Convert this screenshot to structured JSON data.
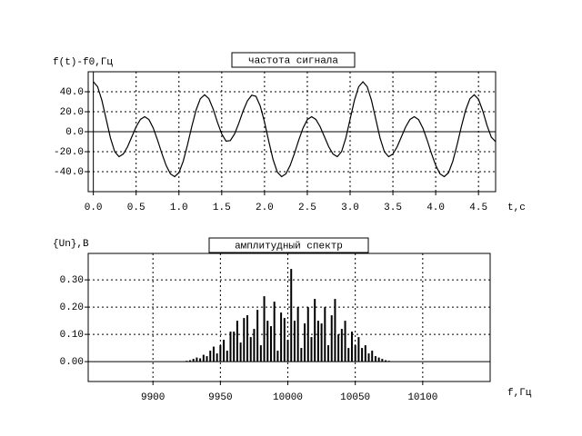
{
  "chart_data": [
    {
      "type": "line",
      "title": "частота сигнала",
      "y_label": "f(t)-f0,Гц",
      "x_label": "t,c",
      "color": "#000000",
      "grid": true,
      "xlim": [
        -0.06,
        4.7
      ],
      "ylim": [
        -60,
        60
      ],
      "xticks": [
        {
          "value": 0,
          "label": "0.0"
        },
        0.5,
        {
          "value": 1,
          "label": "1.0"
        },
        1.5,
        {
          "value": 2,
          "label": "2.0"
        },
        2.5,
        {
          "value": 3,
          "label": "3.0"
        },
        3.5,
        {
          "value": 4,
          "label": "4.0"
        },
        4.5
      ],
      "yticks": [
        {
          "value": -40,
          "label": "-40.0"
        },
        {
          "value": -20,
          "label": "-20.0"
        },
        {
          "value": 0,
          "label": "0.0"
        },
        {
          "value": 20,
          "label": "20.0"
        },
        {
          "value": 40,
          "label": "40.0"
        }
      ],
      "x": [
        0,
        0.05,
        0.1,
        0.15,
        0.2,
        0.25,
        0.3,
        0.35,
        0.4,
        0.45,
        0.5,
        0.55,
        0.6,
        0.65,
        0.7,
        0.75,
        0.8,
        0.85,
        0.9,
        0.95,
        1.0,
        1.05,
        1.1,
        1.15,
        1.2,
        1.25,
        1.3,
        1.35,
        1.4,
        1.45,
        1.5,
        1.55,
        1.6,
        1.65,
        1.7,
        1.75,
        1.8,
        1.85,
        1.9,
        1.95,
        2.0,
        2.05,
        2.1,
        2.15,
        2.2,
        2.25,
        2.3,
        2.35,
        2.4,
        2.45,
        2.5,
        2.55,
        2.6,
        2.65,
        2.7,
        2.75,
        2.8,
        2.85,
        2.9,
        2.95,
        3.0,
        3.05,
        3.1,
        3.15,
        3.2,
        3.25,
        3.3,
        3.35,
        3.4,
        3.45,
        3.5,
        3.55,
        3.6,
        3.65,
        3.7,
        3.75,
        3.8,
        3.85,
        3.9,
        3.95,
        4.0,
        4.05,
        4.1,
        4.15,
        4.2,
        4.25,
        4.3,
        4.35,
        4.4,
        4.45,
        4.5,
        4.55,
        4.6,
        4.65,
        4.7
      ],
      "values": [
        50,
        45,
        31.3,
        12.5,
        -6.3,
        -20,
        -25,
        -22.3,
        -15,
        -5,
        5,
        12.3,
        15,
        12.1,
        3.7,
        -8.3,
        -21.7,
        -33.7,
        -42.1,
        -45,
        -41,
        -29.6,
        -13.1,
        5.1,
        21.6,
        33,
        37,
        33.1,
        22.7,
        9.4,
        -2.2,
        -9.4,
        -8.9,
        -2.2,
        8.6,
        20.8,
        30.9,
        36.5,
        35.4,
        25.7,
        9.7,
        -9.8,
        -27.9,
        -40.5,
        -45,
        -42.1,
        -33.7,
        -21.7,
        -8.3,
        3.7,
        12.1,
        15,
        12.3,
        5,
        -5,
        -15,
        -22.3,
        -25,
        -20,
        -6.3,
        12.5,
        31.3,
        45,
        50,
        45,
        31.3,
        12.5,
        -6.3,
        -20,
        -25,
        -22.3,
        -15,
        -5,
        5,
        12.3,
        15,
        12.1,
        3.7,
        -8.3,
        -21.7,
        -33.7,
        -42.1,
        -45,
        -41,
        -29.6,
        -13.1,
        5.1,
        21.6,
        33,
        37,
        32.5,
        20.8,
        6.2,
        -5.5,
        -10
      ]
    },
    {
      "type": "bar",
      "title": "амплитудный спектр",
      "y_label": "{Un},B",
      "x_label": "f,Гц",
      "color": "#000000",
      "grid": true,
      "xlim": [
        9852,
        10150
      ],
      "ylim": [
        -0.073,
        0.397
      ],
      "xticks": [
        9900,
        9950,
        10000,
        10050,
        10100
      ],
      "yticks": [
        {
          "value": 0,
          "label": "0.00"
        },
        {
          "value": 0.1,
          "label": "0.10"
        },
        {
          "value": 0.2,
          "label": "0.20"
        },
        {
          "value": 0.3,
          "label": "0.30"
        }
      ],
      "x": [
        9925,
        9927.5,
        9930,
        9932.5,
        9935,
        9937.5,
        9940,
        9942.5,
        9945,
        9947.5,
        9950,
        9952.5,
        9955,
        9957.5,
        9960,
        9962.5,
        9965,
        9967.5,
        9970,
        9972.5,
        9975,
        9977.5,
        9980,
        9982.5,
        9985,
        9987.5,
        9990,
        9992.5,
        9995,
        9997.5,
        10000,
        10002.5,
        10005,
        10007.5,
        10010,
        10012.5,
        10015,
        10017.5,
        10020,
        10022.5,
        10025,
        10027.5,
        10030,
        10032.5,
        10035,
        10037.5,
        10040,
        10042.5,
        10045,
        10047.5,
        10050,
        10052.5,
        10055,
        10057.5,
        10060,
        10062.5,
        10065,
        10067.5,
        10070,
        10072.5,
        10075
      ],
      "values": [
        0.003,
        0.005,
        0.01,
        0.015,
        0.012,
        0.025,
        0.02,
        0.04,
        0.055,
        0.03,
        0.06,
        0.08,
        0.04,
        0.11,
        0.11,
        0.15,
        0.07,
        0.16,
        0.17,
        0.09,
        0.12,
        0.19,
        0.06,
        0.24,
        0.15,
        0.13,
        0.22,
        0.04,
        0.18,
        0.16,
        0.08,
        0.34,
        0.15,
        0.2,
        0.05,
        0.14,
        0.2,
        0.09,
        0.23,
        0.15,
        0.14,
        0.2,
        0.06,
        0.17,
        0.23,
        0.1,
        0.12,
        0.15,
        0.05,
        0.11,
        0.06,
        0.09,
        0.05,
        0.06,
        0.03,
        0.04,
        0.02,
        0.015,
        0.01,
        0.005,
        0.003
      ]
    }
  ]
}
